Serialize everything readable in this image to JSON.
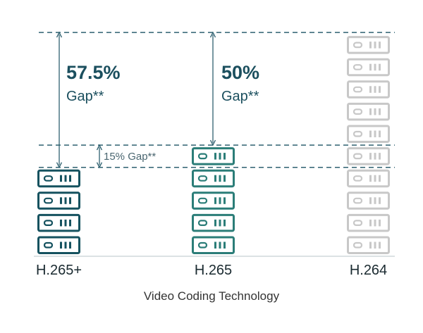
{
  "chart_data": {
    "type": "bar",
    "xlabel": "Video Coding Technology",
    "categories": [
      "H.265+",
      "H.265",
      "H.264"
    ],
    "values": [
      4,
      5,
      10
    ],
    "unit_icon": "server-icon",
    "ylim": [
      0,
      10
    ],
    "annotations": [
      {
        "from": "H.265+",
        "to": "H.264",
        "percent": "57.5%",
        "text": "Gap**"
      },
      {
        "from": "H.265",
        "to": "H.264",
        "percent": "50%",
        "text": "Gap**"
      },
      {
        "from": "H.265+",
        "to": "H.265",
        "text": "15% Gap**"
      }
    ],
    "colors": {
      "H.265+": "#15525f",
      "H.265": "#2b7d78",
      "H.264": "#c8c8c8",
      "guide": "#2f6170",
      "axis": "#b8c4c8"
    }
  }
}
